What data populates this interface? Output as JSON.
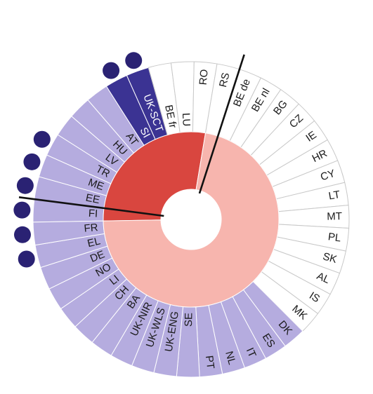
{
  "chart_data": {
    "type": "radial",
    "segments": [
      {
        "label": "FI",
        "category": "purple",
        "dot": true
      },
      {
        "label": "EE",
        "category": "purple",
        "dot": true
      },
      {
        "label": "ME",
        "category": "purple",
        "dot": true
      },
      {
        "label": "TR",
        "category": "purple",
        "dot": true
      },
      {
        "label": "LV",
        "category": "purple",
        "dot": false
      },
      {
        "label": "HU",
        "category": "purple",
        "dot": false
      },
      {
        "label": "AT",
        "category": "purple",
        "dot": false
      },
      {
        "label": "SI",
        "category": "dark",
        "dot": true
      },
      {
        "label": "UK-SCT",
        "category": "dark",
        "dot": true
      },
      {
        "label": "BE fr",
        "category": "white",
        "dot": false
      },
      {
        "label": "LU",
        "category": "white",
        "dot": false
      },
      {
        "label": "RO",
        "category": "white",
        "dot": false
      },
      {
        "label": "RS",
        "category": "white",
        "dot": false
      },
      {
        "label": "BE de",
        "category": "white",
        "dot": false
      },
      {
        "label": "BE nl",
        "category": "white",
        "dot": false
      },
      {
        "label": "BG",
        "category": "white",
        "dot": false
      },
      {
        "label": "CZ",
        "category": "white",
        "dot": false
      },
      {
        "label": "IE",
        "category": "white",
        "dot": false
      },
      {
        "label": "HR",
        "category": "white",
        "dot": false
      },
      {
        "label": "CY",
        "category": "white",
        "dot": false
      },
      {
        "label": "LT",
        "category": "white",
        "dot": false
      },
      {
        "label": "MT",
        "category": "white",
        "dot": false
      },
      {
        "label": "PL",
        "category": "white",
        "dot": false
      },
      {
        "label": "SK",
        "category": "white",
        "dot": false
      },
      {
        "label": "AL",
        "category": "white",
        "dot": false
      },
      {
        "label": "IS",
        "category": "white",
        "dot": false
      },
      {
        "label": "MK",
        "category": "white",
        "dot": false
      },
      {
        "label": "DK",
        "category": "purple",
        "dot": false
      },
      {
        "label": "ES",
        "category": "purple",
        "dot": false
      },
      {
        "label": "IT",
        "category": "purple",
        "dot": false
      },
      {
        "label": "NL",
        "category": "purple",
        "dot": false
      },
      {
        "label": "PT",
        "category": "purple",
        "dot": false
      },
      {
        "label": "SE",
        "category": "purple",
        "dot": false
      },
      {
        "label": "UK-ENG",
        "category": "purple",
        "dot": false
      },
      {
        "label": "UK-WLS",
        "category": "purple",
        "dot": false
      },
      {
        "label": "UK-NIR",
        "category": "purple",
        "dot": false
      },
      {
        "label": "BA",
        "category": "purple",
        "dot": false
      },
      {
        "label": "CH",
        "category": "purple",
        "dot": false
      },
      {
        "label": "LI",
        "category": "purple",
        "dot": false
      },
      {
        "label": "NO",
        "category": "purple",
        "dot": false
      },
      {
        "label": "DE",
        "category": "purple",
        "dot": false
      },
      {
        "label": "EL",
        "category": "purple",
        "dot": true
      },
      {
        "label": "FR",
        "category": "purple",
        "dot": true
      }
    ],
    "inner_ring": [
      {
        "name": "highlight",
        "from_segment": 0,
        "to_segment": 12,
        "color": "#d9463f"
      },
      {
        "name": "rest",
        "from_segment": 12,
        "to_segment": 43,
        "color": "#f7b5ae"
      }
    ],
    "divider_lines_after_segments": [
      0,
      12
    ],
    "colors": {
      "purple": "#b5acdf",
      "dark": "#3b3393",
      "white": "#ffffff",
      "dot": "#2a2273",
      "grid": "#c8c8c8",
      "divider": "#111111"
    }
  }
}
